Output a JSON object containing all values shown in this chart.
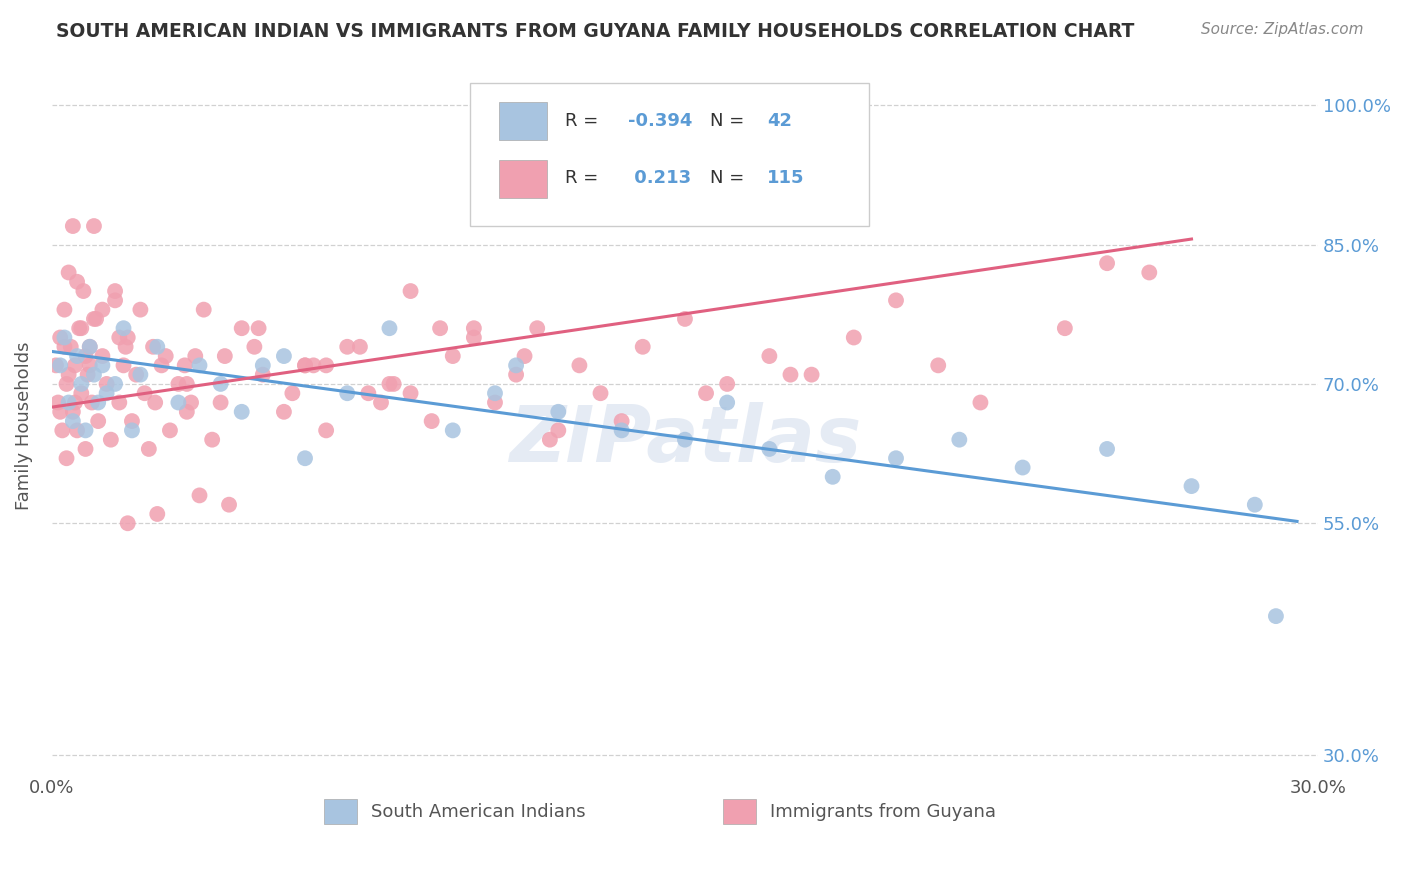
{
  "title": "SOUTH AMERICAN INDIAN VS IMMIGRANTS FROM GUYANA FAMILY HOUSEHOLDS CORRELATION CHART",
  "source": "Source: ZipAtlas.com",
  "ylabel": "Family Households",
  "xlim": [
    0.0,
    30.0
  ],
  "ylim": [
    28.0,
    103.0
  ],
  "ytick_values": [
    30.0,
    55.0,
    70.0,
    85.0,
    100.0
  ],
  "blue_color": "#a8c4e0",
  "pink_color": "#f0a0b0",
  "blue_line_color": "#5b9bd5",
  "pink_line_color": "#e06080",
  "watermark": "ZIPatlas",
  "background_color": "#ffffff",
  "grid_color": "#cccccc",
  "blue_scatter_x": [
    0.2,
    0.3,
    0.4,
    0.5,
    0.6,
    0.7,
    0.8,
    0.9,
    1.0,
    1.1,
    1.2,
    1.3,
    1.5,
    1.7,
    1.9,
    2.1,
    2.5,
    3.0,
    3.5,
    4.0,
    4.5,
    5.0,
    5.5,
    6.0,
    7.0,
    8.0,
    9.5,
    10.5,
    11.0,
    12.0,
    13.5,
    15.0,
    16.0,
    17.0,
    18.5,
    20.0,
    21.5,
    23.0,
    25.0,
    27.0,
    28.5,
    29.0
  ],
  "blue_scatter_y": [
    72,
    75,
    68,
    66,
    73,
    70,
    65,
    74,
    71,
    68,
    72,
    69,
    70,
    76,
    65,
    71,
    74,
    68,
    72,
    70,
    67,
    72,
    73,
    62,
    69,
    76,
    65,
    69,
    72,
    67,
    65,
    64,
    68,
    63,
    60,
    62,
    64,
    61,
    63,
    59,
    57,
    45
  ],
  "pink_scatter_x": [
    0.1,
    0.15,
    0.2,
    0.25,
    0.3,
    0.35,
    0.4,
    0.45,
    0.5,
    0.55,
    0.6,
    0.65,
    0.7,
    0.75,
    0.8,
    0.85,
    0.9,
    0.95,
    1.0,
    1.1,
    1.2,
    1.3,
    1.4,
    1.5,
    1.6,
    1.7,
    1.8,
    1.9,
    2.0,
    2.2,
    2.4,
    2.6,
    2.8,
    3.0,
    3.2,
    3.4,
    3.6,
    3.8,
    4.0,
    4.5,
    5.0,
    5.5,
    6.0,
    6.5,
    7.0,
    7.5,
    8.0,
    8.5,
    9.0,
    9.5,
    10.0,
    10.5,
    11.0,
    11.5,
    12.0,
    12.5,
    13.0,
    14.0,
    15.0,
    16.0,
    17.0,
    18.0,
    19.0,
    20.0,
    21.0,
    22.0,
    24.0,
    25.0,
    26.0,
    4.2,
    3.5,
    2.5,
    1.5,
    1.8,
    2.3,
    0.5,
    0.6,
    0.7,
    0.8,
    1.0,
    1.2,
    0.3,
    0.4,
    0.55,
    3.2,
    4.8,
    6.2,
    7.8,
    9.2,
    11.2,
    13.5,
    15.5,
    17.5,
    6.0,
    8.5,
    0.2,
    0.9,
    1.6,
    2.1,
    2.7,
    3.3,
    4.1,
    4.9,
    5.7,
    6.5,
    7.3,
    8.1,
    10.0,
    11.8,
    0.35,
    1.05,
    1.75,
    2.45,
    3.15
  ],
  "pink_scatter_y": [
    72,
    68,
    75,
    65,
    78,
    70,
    82,
    74,
    67,
    72,
    65,
    76,
    69,
    80,
    63,
    71,
    74,
    68,
    77,
    66,
    73,
    70,
    64,
    79,
    68,
    72,
    75,
    66,
    71,
    69,
    74,
    72,
    65,
    70,
    67,
    73,
    78,
    64,
    68,
    76,
    71,
    67,
    72,
    65,
    74,
    69,
    70,
    80,
    66,
    73,
    75,
    68,
    71,
    76,
    65,
    72,
    69,
    74,
    77,
    70,
    73,
    71,
    75,
    79,
    72,
    68,
    76,
    83,
    82,
    57,
    58,
    56,
    80,
    55,
    63,
    87,
    81,
    76,
    73,
    87,
    78,
    74,
    71,
    68,
    70,
    74,
    72,
    68,
    76,
    73,
    66,
    69,
    71,
    72,
    69,
    67,
    72,
    75,
    78,
    73,
    68,
    73,
    76,
    69,
    72,
    74,
    70,
    76,
    64,
    62,
    77,
    74,
    68,
    72,
    66
  ],
  "blue_line_x": [
    0.0,
    29.5
  ],
  "blue_line_y": [
    73.5,
    55.2
  ],
  "pink_line_x": [
    0.0,
    27.0
  ],
  "pink_line_y": [
    67.5,
    85.6
  ]
}
